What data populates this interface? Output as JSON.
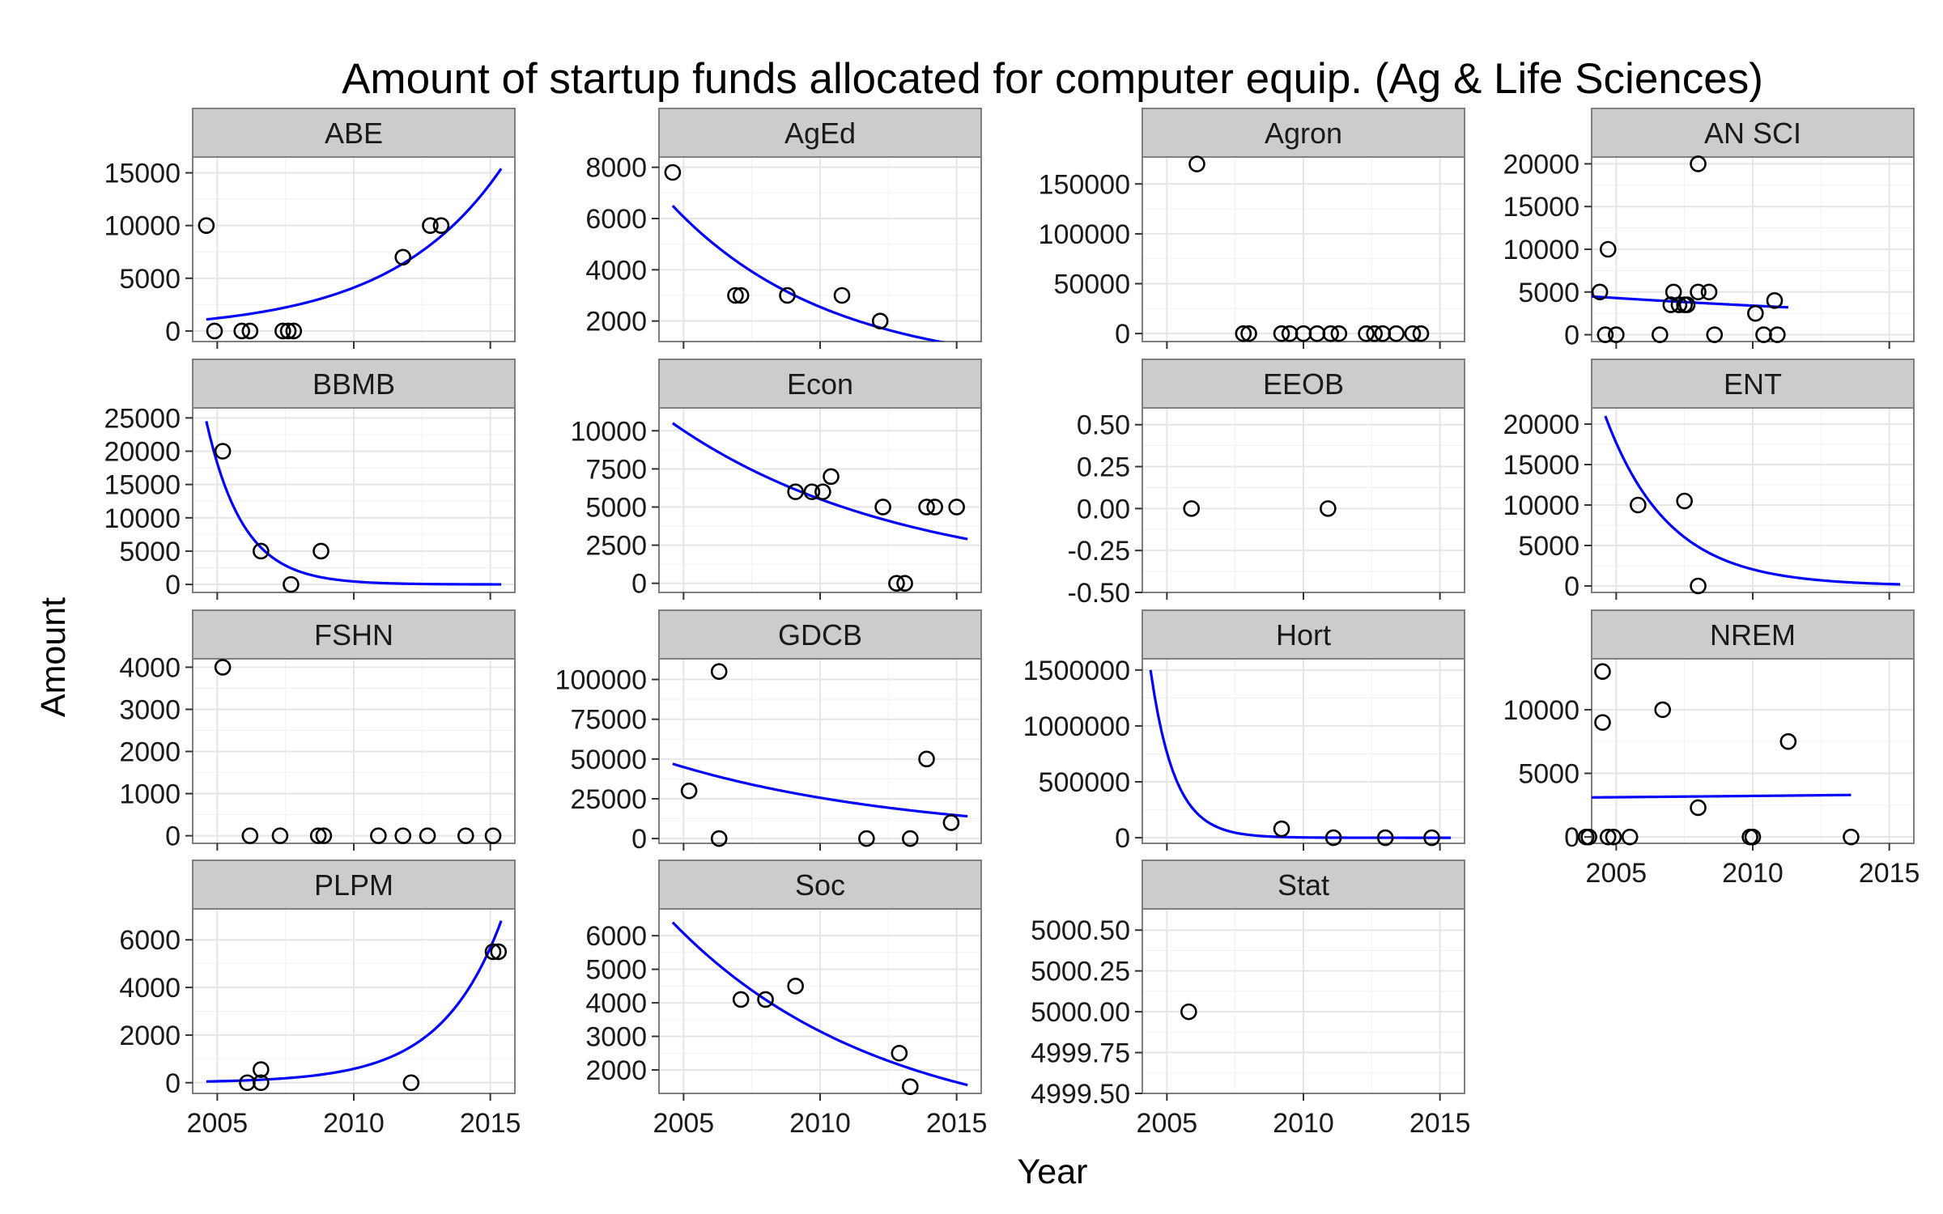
{
  "chart_data": {
    "type": "scatter",
    "title": "Amount of startup funds allocated for computer equip. (Ag & Life Sciences)",
    "xlabel": "Year",
    "ylabel": "Amount",
    "xlim": [
      2004.1,
      2015.9
    ],
    "x_ticks": [
      2005,
      2010,
      2015
    ],
    "x_tick_labels": [
      "2005",
      "2010",
      "2015"
    ],
    "fit_color": "#0000ff",
    "panels": [
      {
        "name": "ABE",
        "ylim": [
          -1000,
          16500
        ],
        "y_ticks": [
          0,
          5000,
          10000,
          15000
        ],
        "y_tick_labels": [
          "0",
          "5000",
          "10000",
          "15000"
        ],
        "points": [
          [
            2004.6,
            10000
          ],
          [
            2004.9,
            0
          ],
          [
            2005.9,
            0
          ],
          [
            2006.2,
            0
          ],
          [
            2007.4,
            0
          ],
          [
            2007.6,
            0
          ],
          [
            2007.8,
            0
          ],
          [
            2011.8,
            7000
          ],
          [
            2012.8,
            10000
          ],
          [
            2013.2,
            10000
          ]
        ],
        "fit": {
          "form": "exp",
          "from": 2004.6,
          "to": 2015.4,
          "y0": 1100,
          "y1": 15400
        }
      },
      {
        "name": "AgEd",
        "ylim": [
          1200,
          8400
        ],
        "y_ticks": [
          2000,
          4000,
          6000,
          8000
        ],
        "y_tick_labels": [
          "2000",
          "4000",
          "6000",
          "8000"
        ],
        "points": [
          [
            2004.6,
            7800
          ],
          [
            2006.9,
            3000
          ],
          [
            2007.1,
            3000
          ],
          [
            2008.8,
            3000
          ],
          [
            2010.8,
            3000
          ],
          [
            2012.2,
            2000
          ]
        ],
        "fit": {
          "form": "exp",
          "from": 2004.6,
          "to": 2015.4,
          "y0": 6500,
          "y1": 1000
        }
      },
      {
        "name": "Agron",
        "ylim": [
          -8000,
          177000
        ],
        "y_ticks": [
          0,
          50000,
          100000,
          150000
        ],
        "y_tick_labels": [
          "0",
          "50000",
          "100000",
          "150000"
        ],
        "points": [
          [
            2006.1,
            170000
          ],
          [
            2007.8,
            0
          ],
          [
            2008.0,
            0
          ],
          [
            2009.2,
            0
          ],
          [
            2009.5,
            0
          ],
          [
            2010.0,
            0
          ],
          [
            2010.5,
            0
          ],
          [
            2011.0,
            0
          ],
          [
            2011.3,
            0
          ],
          [
            2012.3,
            0
          ],
          [
            2012.6,
            0
          ],
          [
            2012.9,
            0
          ],
          [
            2013.4,
            0
          ],
          [
            2014.0,
            0
          ],
          [
            2014.3,
            0
          ]
        ],
        "fit": null
      },
      {
        "name": "AN SCI",
        "ylim": [
          -800,
          20800
        ],
        "y_ticks": [
          0,
          5000,
          10000,
          15000,
          20000
        ],
        "y_tick_labels": [
          "0",
          "5000",
          "10000",
          "15000",
          "20000"
        ],
        "points": [
          [
            2004.4,
            5000
          ],
          [
            2004.7,
            10000
          ],
          [
            2004.6,
            0
          ],
          [
            2005.0,
            0
          ],
          [
            2006.6,
            0
          ],
          [
            2007.0,
            3500
          ],
          [
            2007.1,
            5000
          ],
          [
            2007.3,
            3500
          ],
          [
            2007.6,
            3500
          ],
          [
            2007.5,
            3500
          ],
          [
            2008.0,
            20000
          ],
          [
            2008.0,
            5000
          ],
          [
            2008.4,
            5000
          ],
          [
            2008.6,
            0
          ],
          [
            2010.1,
            2500
          ],
          [
            2010.4,
            0
          ],
          [
            2010.8,
            4000
          ],
          [
            2010.9,
            0
          ]
        ],
        "fit": {
          "form": "exp",
          "from": 2004.0,
          "to": 2011.3,
          "y0": 4500,
          "y1": 3200
        }
      },
      {
        "name": "BBMB",
        "ylim": [
          -1200,
          26500
        ],
        "y_ticks": [
          0,
          5000,
          10000,
          15000,
          20000,
          25000
        ],
        "y_tick_labels": [
          "0",
          "5000",
          "10000",
          "15000",
          "20000",
          "25000"
        ],
        "points": [
          [
            2005.2,
            20000
          ],
          [
            2006.6,
            5000
          ],
          [
            2007.7,
            0
          ],
          [
            2008.8,
            5000
          ]
        ],
        "fit": {
          "form": "exp",
          "from": 2004.6,
          "to": 2015.4,
          "y0": 24500,
          "y1": 8
        }
      },
      {
        "name": "Econ",
        "ylim": [
          -600,
          11500
        ],
        "y_ticks": [
          0,
          2500,
          5000,
          7500,
          10000
        ],
        "y_tick_labels": [
          "0",
          "2500",
          "5000",
          "7500",
          "10000"
        ],
        "points": [
          [
            2009.1,
            6000
          ],
          [
            2009.7,
            6000
          ],
          [
            2010.1,
            6000
          ],
          [
            2010.4,
            7000
          ],
          [
            2012.3,
            5000
          ],
          [
            2012.8,
            0
          ],
          [
            2013.1,
            0
          ],
          [
            2013.9,
            5000
          ],
          [
            2014.2,
            5000
          ],
          [
            2015.0,
            5000
          ]
        ],
        "fit": {
          "form": "exp",
          "from": 2004.6,
          "to": 2015.4,
          "y0": 10500,
          "y1": 2900
        }
      },
      {
        "name": "EEOB",
        "ylim": [
          -0.5,
          0.6
        ],
        "y_ticks": [
          -0.5,
          -0.25,
          0,
          0.25,
          0.5
        ],
        "y_tick_labels": [
          "-0.50",
          "-0.25",
          "0.00",
          "0.25",
          "0.50"
        ],
        "points": [
          [
            2005.9,
            0
          ],
          [
            2010.9,
            0
          ]
        ],
        "fit": null
      },
      {
        "name": "ENT",
        "ylim": [
          -800,
          22000
        ],
        "y_ticks": [
          0,
          5000,
          10000,
          15000,
          20000
        ],
        "y_tick_labels": [
          "0",
          "5000",
          "10000",
          "15000",
          "20000"
        ],
        "points": [
          [
            2005.8,
            10000
          ],
          [
            2007.5,
            10500
          ],
          [
            2008.0,
            0
          ]
        ],
        "fit": {
          "form": "exp",
          "from": 2004.6,
          "to": 2015.4,
          "y0": 21000,
          "y1": 200
        }
      },
      {
        "name": "FSHN",
        "ylim": [
          -180,
          4200
        ],
        "y_ticks": [
          0,
          1000,
          2000,
          3000,
          4000
        ],
        "y_tick_labels": [
          "0",
          "1000",
          "2000",
          "3000",
          "4000"
        ],
        "points": [
          [
            2005.2,
            4000
          ],
          [
            2006.2,
            0
          ],
          [
            2007.3,
            0
          ],
          [
            2008.7,
            0
          ],
          [
            2008.9,
            0
          ],
          [
            2010.9,
            0
          ],
          [
            2011.8,
            0
          ],
          [
            2012.7,
            0
          ],
          [
            2014.1,
            0
          ],
          [
            2015.1,
            0
          ]
        ],
        "fit": null
      },
      {
        "name": "GDCB",
        "ylim": [
          -3000,
          113000
        ],
        "y_ticks": [
          0,
          25000,
          50000,
          75000,
          100000
        ],
        "y_tick_labels": [
          "0",
          "25000",
          "50000",
          "75000",
          "100000"
        ],
        "points": [
          [
            2005.2,
            30000
          ],
          [
            2006.3,
            105000
          ],
          [
            2006.3,
            0
          ],
          [
            2011.7,
            0
          ],
          [
            2013.3,
            0
          ],
          [
            2013.9,
            50000
          ],
          [
            2014.8,
            10000
          ]
        ],
        "fit": {
          "form": "exp",
          "from": 2004.6,
          "to": 2015.4,
          "y0": 47000,
          "y1": 14000
        }
      },
      {
        "name": "Hort",
        "ylim": [
          -50000,
          1600000
        ],
        "y_ticks": [
          0,
          500000,
          1000000,
          1500000
        ],
        "y_tick_labels": [
          "0",
          "500000",
          "1000000",
          "1500000"
        ],
        "points": [
          [
            2009.2,
            80000
          ],
          [
            2011.1,
            0
          ],
          [
            2013.0,
            0
          ],
          [
            2014.7,
            0
          ]
        ],
        "fit": {
          "form": "exp",
          "from": 2004.4,
          "to": 2015.4,
          "y0": 1500000,
          "y1": 6
        }
      },
      {
        "name": "NREM",
        "ylim": [
          -500,
          14000
        ],
        "y_ticks": [
          0,
          5000,
          10000
        ],
        "y_tick_labels": [
          "0",
          "5000",
          "10000"
        ],
        "points": [
          [
            2003.9,
            0
          ],
          [
            2004.0,
            0
          ],
          [
            2004.5,
            13000
          ],
          [
            2004.7,
            0
          ],
          [
            2004.5,
            9000
          ],
          [
            2004.9,
            0
          ],
          [
            2005.5,
            0
          ],
          [
            2006.7,
            10000
          ],
          [
            2008.0,
            2300
          ],
          [
            2009.9,
            0
          ],
          [
            2010.0,
            0
          ],
          [
            2011.3,
            7500
          ],
          [
            2013.6,
            0
          ]
        ],
        "fit": {
          "form": "exp",
          "from": 2003.9,
          "to": 2013.6,
          "y0": 3100,
          "y1": 3300
        }
      },
      {
        "name": "PLPM",
        "ylim": [
          -450,
          7300
        ],
        "y_ticks": [
          0,
          2000,
          4000,
          6000
        ],
        "y_tick_labels": [
          "0",
          "2000",
          "4000",
          "6000"
        ],
        "points": [
          [
            2006.1,
            0
          ],
          [
            2006.6,
            550
          ],
          [
            2006.6,
            0
          ],
          [
            2012.1,
            0
          ],
          [
            2015.1,
            5500
          ],
          [
            2015.3,
            5500
          ]
        ],
        "fit": {
          "form": "exp",
          "from": 2004.6,
          "to": 2015.4,
          "y0": 50,
          "y1": 6800
        }
      },
      {
        "name": "Soc",
        "ylim": [
          1300,
          6800
        ],
        "y_ticks": [
          2000,
          3000,
          4000,
          5000,
          6000
        ],
        "y_tick_labels": [
          "2000",
          "3000",
          "4000",
          "5000",
          "6000"
        ],
        "points": [
          [
            2007.1,
            4100
          ],
          [
            2008.0,
            4100
          ],
          [
            2009.1,
            4500
          ],
          [
            2012.9,
            2500
          ],
          [
            2013.3,
            1500
          ]
        ],
        "fit": {
          "form": "exp",
          "from": 2004.6,
          "to": 2015.4,
          "y0": 6400,
          "y1": 1550
        }
      },
      {
        "name": "Stat",
        "ylim": [
          4999.5,
          5000.63
        ],
        "y_ticks": [
          4999.5,
          4999.75,
          5000,
          5000.25,
          5000.5
        ],
        "y_tick_labels": [
          "4999.50",
          "4999.75",
          "5000.00",
          "5000.25",
          "5000.50"
        ],
        "points": [
          [
            2005.8,
            5000
          ]
        ],
        "fit": null
      }
    ]
  }
}
